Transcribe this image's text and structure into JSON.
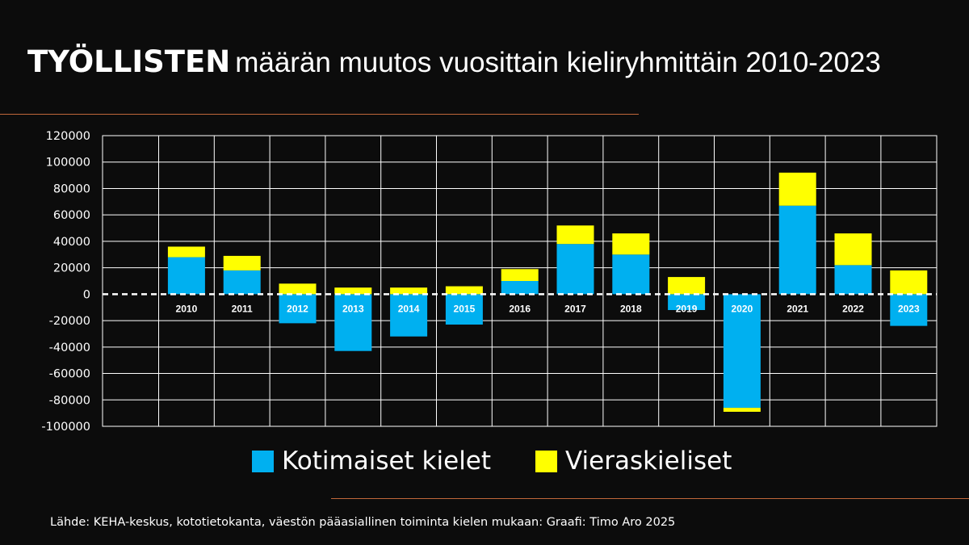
{
  "header": {
    "title_bold": "TYÖLLISTEN",
    "title_rest": "määrän muutos vuosittain kieliryhmittäin 2010-2023"
  },
  "chart_data": {
    "type": "bar",
    "stacked": true,
    "categories": [
      "2010",
      "2011",
      "2012",
      "2013",
      "2014",
      "2015",
      "2016",
      "2017",
      "2018",
      "2019",
      "2020",
      "2021",
      "2022",
      "2023"
    ],
    "series": [
      {
        "name": "Kotimaiset kielet",
        "color": "#00b0f0",
        "values": [
          28000,
          18000,
          -22000,
          -43000,
          -32000,
          -23000,
          10000,
          38000,
          30000,
          -12000,
          -86000,
          67000,
          22000,
          -24000
        ]
      },
      {
        "name": "Vieraskieliset",
        "color": "#ffff00",
        "values": [
          8000,
          11000,
          8000,
          5000,
          5000,
          6000,
          9000,
          14000,
          16000,
          13000,
          -3000,
          25000,
          24000,
          18000
        ]
      }
    ],
    "ylim": [
      -100000,
      120000
    ],
    "yticks": [
      120000,
      100000,
      80000,
      60000,
      40000,
      20000,
      0,
      -20000,
      -40000,
      -60000,
      -80000,
      -100000
    ],
    "ytick_labels": [
      "120000",
      "100000",
      "80000",
      "60000",
      "40000",
      "20000",
      "0",
      "-20000",
      "-40000",
      "-60000",
      "-80000",
      "-100000"
    ],
    "grid": true,
    "zero_line": "dashed",
    "legend_position": "bottom",
    "title": "TYÖLLISTEN määrän muutos vuosittain kieliryhmittäin 2010-2023"
  },
  "legend": {
    "items": [
      {
        "label": "Kotimaiset kielet",
        "color": "#00b0f0"
      },
      {
        "label": "Vieraskieliset",
        "color": "#ffff00"
      }
    ]
  },
  "footer": {
    "source": "Lähde: KEHA-keskus, kototietokanta, väestön pääasiallinen toiminta kielen mukaan: Graafi: Timo Aro 2025"
  }
}
